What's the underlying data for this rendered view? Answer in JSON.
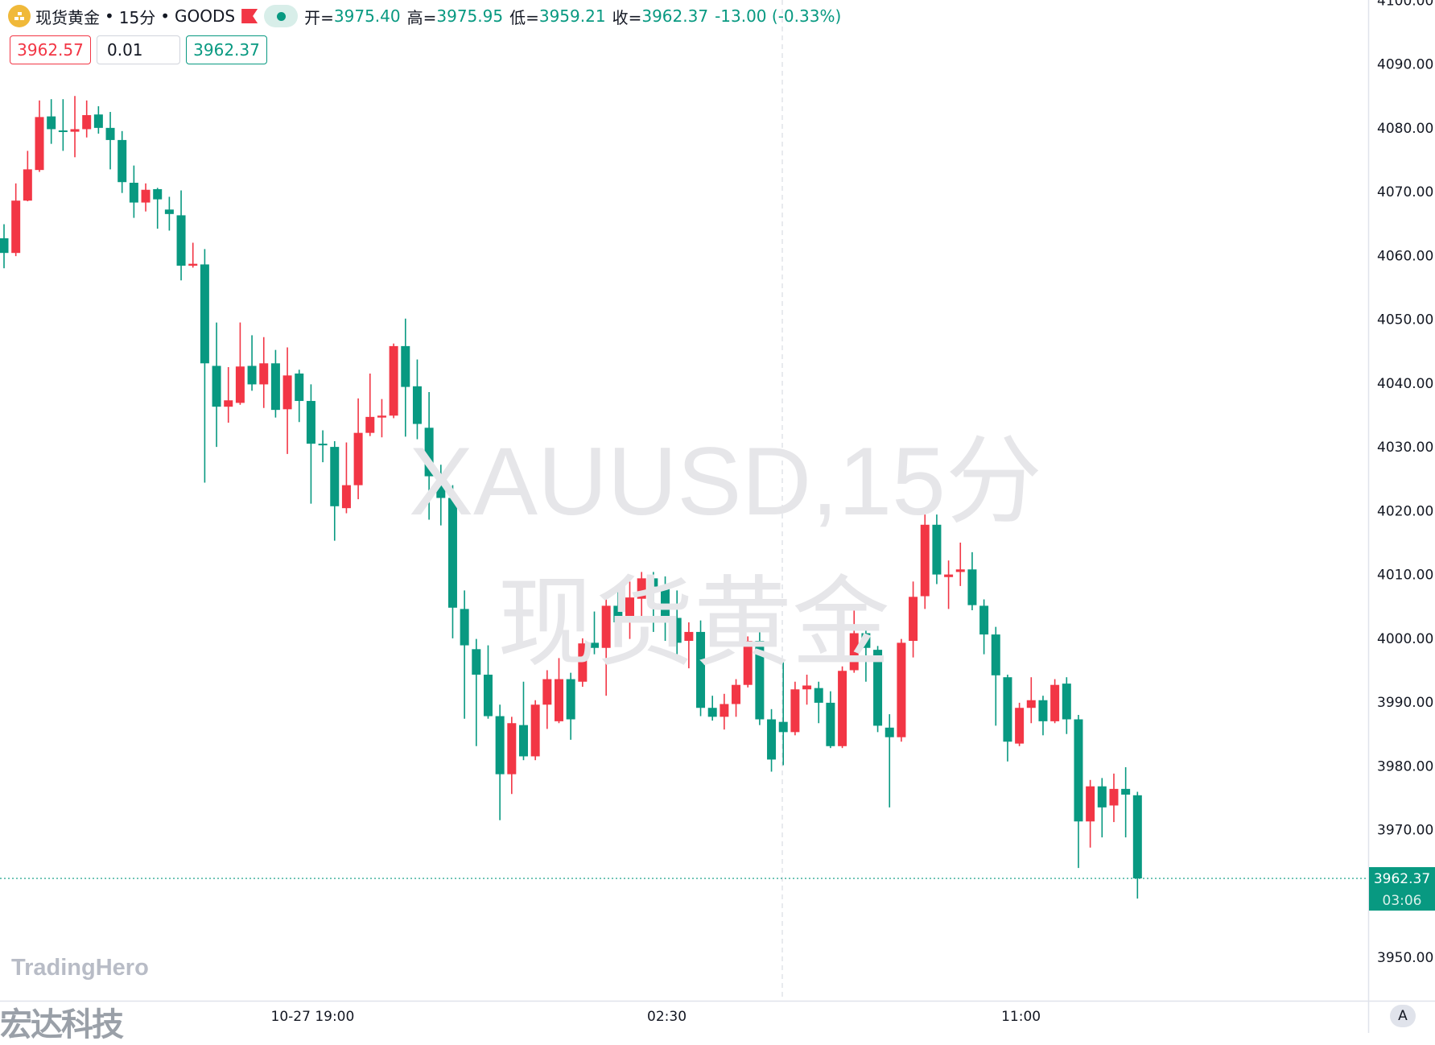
{
  "header": {
    "symbol_name": "现货黄金",
    "sep1": "•",
    "interval": "15分",
    "sep2": "•",
    "exchange": "GOODS",
    "open_label": "开=",
    "open": "3975.40",
    "high_label": "高=",
    "high": "3975.95",
    "low_label": "低=",
    "low": "3959.21",
    "close_label": "收=",
    "close": "3962.37",
    "change": "-13.00 (-0.33%)"
  },
  "trade": {
    "sell_price": "3962.57",
    "quantity": "0.01",
    "buy_price": "3962.37"
  },
  "watermark": {
    "line1": "XAUUSD,15分",
    "line2": "现货黄金"
  },
  "logos": {
    "tradinghero": "TradingHero",
    "company": "宏达科技"
  },
  "price_axis": {
    "last_price": "3962.37",
    "countdown": "03:06",
    "auto_button": "A"
  },
  "colors": {
    "up": "#f23645",
    "down": "#089981",
    "grid": "#e0e3eb"
  },
  "chart_data": {
    "type": "candlestick",
    "title": "",
    "interval": "15m",
    "up_color_meaning": "red = close above open",
    "down_color_meaning": "green = close below open",
    "ylim": [
      3950,
      4100
    ],
    "y_ticks": [
      "4100.00",
      "4090.00",
      "4080.00",
      "4070.00",
      "4060.00",
      "4050.00",
      "4040.00",
      "4030.00",
      "4020.00",
      "4010.00",
      "4000.00",
      "3990.00",
      "3980.00",
      "3970.00",
      "3950.00"
    ],
    "x_ticks": [
      {
        "index": 26,
        "label": "10-27 19:00"
      },
      {
        "index": 56,
        "label": "02:30"
      },
      {
        "index": 86,
        "label": "11:00"
      }
    ],
    "session_break_index": 65,
    "ohlc": [
      [
        4062.7,
        4064.9,
        4058.0,
        4060.4
      ],
      [
        4060.4,
        4071.3,
        4059.9,
        4068.6
      ],
      [
        4068.6,
        4076.4,
        4068.5,
        4073.5
      ],
      [
        4073.4,
        4084.3,
        4073.1,
        4081.7
      ],
      [
        4081.8,
        4084.5,
        4077.5,
        4079.8
      ],
      [
        4079.6,
        4084.5,
        4076.4,
        4079.4
      ],
      [
        4079.4,
        4085.0,
        4075.4,
        4079.8
      ],
      [
        4079.8,
        4084.3,
        4078.5,
        4082.0
      ],
      [
        4082.1,
        4083.4,
        4079.1,
        4080.0
      ],
      [
        4080.0,
        4082.5,
        4073.5,
        4078.1
      ],
      [
        4078.1,
        4079.5,
        4069.8,
        4071.5
      ],
      [
        4071.4,
        4074.1,
        4065.9,
        4068.3
      ],
      [
        4068.3,
        4071.3,
        4066.9,
        4070.3
      ],
      [
        4070.4,
        4070.6,
        4064.2,
        4068.8
      ],
      [
        4067.2,
        4069.2,
        4063.9,
        4066.5
      ],
      [
        4066.3,
        4070.2,
        4056.1,
        4058.4
      ],
      [
        4058.4,
        4062.0,
        4058.1,
        4058.7
      ],
      [
        4058.6,
        4061.0,
        4024.4,
        4043.1
      ],
      [
        4042.7,
        4049.5,
        4030.0,
        4036.3
      ],
      [
        4036.3,
        4042.5,
        4033.8,
        4037.3
      ],
      [
        4036.9,
        4049.5,
        4036.6,
        4042.6
      ],
      [
        4042.7,
        4047.5,
        4038.8,
        4039.8
      ],
      [
        4039.8,
        4047.2,
        4036.1,
        4043.1
      ],
      [
        4043.1,
        4045.2,
        4034.6,
        4035.8
      ],
      [
        4035.9,
        4045.6,
        4028.9,
        4041.2
      ],
      [
        4041.5,
        4042.1,
        4033.9,
        4037.2
      ],
      [
        4037.2,
        4039.8,
        4021.1,
        4030.5
      ],
      [
        4030.5,
        4032.6,
        4027.6,
        4030.3
      ],
      [
        4030.0,
        4030.9,
        4015.3,
        4020.7
      ],
      [
        4020.4,
        4030.7,
        4019.6,
        4024.0
      ],
      [
        4024.0,
        4037.6,
        4021.8,
        4032.2
      ],
      [
        4032.2,
        4041.5,
        4031.7,
        4034.7
      ],
      [
        4034.6,
        4037.5,
        4031.5,
        4034.9
      ],
      [
        4034.9,
        4046.2,
        4034.5,
        4045.8
      ],
      [
        4045.8,
        4050.1,
        4031.6,
        4039.4
      ],
      [
        4039.5,
        4043.7,
        4031.2,
        4033.6
      ],
      [
        4033.0,
        4038.6,
        4018.6,
        4025.4
      ],
      [
        4024.0,
        4027.2,
        4017.7,
        4022.0
      ],
      [
        4022.0,
        4024.0,
        4000.0,
        4004.8
      ],
      [
        4004.6,
        4007.5,
        3987.4,
        3998.9
      ],
      [
        3998.3,
        3999.9,
        3983.1,
        3994.3
      ],
      [
        3994.3,
        3998.9,
        3987.4,
        3987.8
      ],
      [
        3987.8,
        3989.6,
        3971.5,
        3978.7
      ],
      [
        3978.7,
        3987.7,
        3975.6,
        3986.7
      ],
      [
        3986.4,
        3993.2,
        3980.9,
        3981.5
      ],
      [
        3981.5,
        3990.3,
        3980.9,
        3989.6
      ],
      [
        3989.6,
        3995.0,
        3985.8,
        3993.6
      ],
      [
        3987.0,
        3996.9,
        3986.7,
        3993.6
      ],
      [
        3993.6,
        3994.6,
        3984.1,
        3987.3
      ],
      [
        3993.2,
        4000.0,
        3992.4,
        3999.2
      ],
      [
        3999.3,
        4004.2,
        3997.5,
        3998.5
      ],
      [
        3998.5,
        4006.5,
        3991.0,
        4005.1
      ],
      [
        4005.1,
        4007.5,
        3999.6,
        4002.5
      ],
      [
        4002.5,
        4008.9,
        3999.9,
        4006.4
      ],
      [
        4006.2,
        4010.4,
        4002.5,
        4009.4
      ],
      [
        4009.4,
        4010.4,
        4001.0,
        4008.1
      ],
      [
        4008.1,
        4009.7,
        3999.6,
        4003.2
      ],
      [
        4003.2,
        4007.5,
        3997.5,
        3999.3
      ],
      [
        3999.6,
        4002.5,
        3995.3,
        4001.0
      ],
      [
        4001.0,
        4002.8,
        3987.8,
        3989.1
      ],
      [
        3989.1,
        3991.0,
        3987.1,
        3987.7
      ],
      [
        3987.7,
        3991.3,
        3985.7,
        3989.7
      ],
      [
        3989.7,
        3993.6,
        3987.7,
        3992.7
      ],
      [
        3992.7,
        4000.3,
        3992.3,
        3999.6
      ],
      [
        3999.6,
        4001.3,
        3986.4,
        3987.3
      ],
      [
        3987.3,
        3988.9,
        3979.1,
        3981.0
      ],
      [
        3986.9,
        3996.3,
        3980.1,
        3985.3
      ],
      [
        3985.3,
        3993.2,
        3984.8,
        3992.0
      ],
      [
        3992.0,
        3994.3,
        3989.6,
        3992.6
      ],
      [
        3992.2,
        3993.2,
        3986.7,
        3989.9
      ],
      [
        3989.9,
        3991.7,
        3982.8,
        3983.1
      ],
      [
        3983.1,
        3995.6,
        3982.8,
        3994.9
      ],
      [
        3995.0,
        4004.4,
        3994.6,
        4000.8
      ],
      [
        4000.8,
        4001.3,
        3993.2,
        3998.5
      ],
      [
        3998.2,
        3998.8,
        3985.3,
        3986.3
      ],
      [
        3986.0,
        3988.1,
        3973.5,
        3984.5
      ],
      [
        3984.5,
        3999.9,
        3983.8,
        3999.3
      ],
      [
        3999.6,
        4008.9,
        3997.0,
        4006.5
      ],
      [
        4006.6,
        4019.4,
        4004.6,
        4017.8
      ],
      [
        4017.8,
        4019.4,
        4008.5,
        4010.0
      ],
      [
        4009.6,
        4012.2,
        4004.6,
        4010.0
      ],
      [
        4010.4,
        4015.0,
        4008.2,
        4010.8
      ],
      [
        4010.8,
        4013.5,
        4004.4,
        4005.2
      ],
      [
        4005.1,
        4006.1,
        3997.5,
        4000.6
      ],
      [
        4000.6,
        4001.8,
        3986.3,
        3994.2
      ],
      [
        3993.9,
        3994.3,
        3980.7,
        3983.8
      ],
      [
        3983.5,
        3989.9,
        3983.1,
        3989.1
      ],
      [
        3989.1,
        3993.9,
        3986.7,
        3990.3
      ],
      [
        3990.3,
        3991.0,
        3984.8,
        3987.0
      ],
      [
        3987.0,
        3993.6,
        3986.7,
        3992.7
      ],
      [
        3992.9,
        3993.9,
        3985.0,
        3987.3
      ],
      [
        3987.3,
        3988.0,
        3964.0,
        3971.3
      ],
      [
        3971.3,
        3977.8,
        3967.2,
        3976.8
      ],
      [
        3976.8,
        3978.1,
        3968.8,
        3973.5
      ],
      [
        3973.8,
        3978.8,
        3971.2,
        3976.4
      ],
      [
        3976.4,
        3979.8,
        3968.8,
        3975.5
      ],
      [
        3975.4,
        3975.95,
        3959.21,
        3962.37
      ]
    ],
    "last_price": 3962.37
  }
}
